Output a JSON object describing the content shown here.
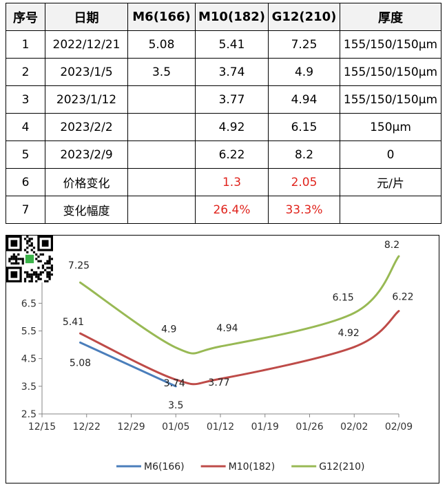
{
  "table": {
    "headers": [
      "序号",
      "日期",
      "M6(166)",
      "M10(182)",
      "G12(210)",
      "厚度"
    ],
    "rows": [
      {
        "no": "1",
        "date": "2022/12/21",
        "m6": "5.08",
        "m10": "5.41",
        "g12": "7.25",
        "thickness": "155/150/150μm"
      },
      {
        "no": "2",
        "date": "2023/1/5",
        "m6": "3.5",
        "m10": "3.74",
        "g12": "4.9",
        "thickness": "155/150/150μm"
      },
      {
        "no": "3",
        "date": "2023/1/12",
        "m6": "",
        "m10": "3.77",
        "g12": "4.94",
        "thickness": "155/150/150μm"
      },
      {
        "no": "4",
        "date": "2023/2/2",
        "m6": "",
        "m10": "4.92",
        "g12": "6.15",
        "thickness": "150μm"
      },
      {
        "no": "5",
        "date": "2023/2/9",
        "m6": "",
        "m10": "6.22",
        "g12": "8.2",
        "thickness": "0"
      },
      {
        "no": "6",
        "date": "价格变化",
        "m6": "",
        "m10": "1.3",
        "g12": "2.05",
        "thickness": "元/片"
      },
      {
        "no": "7",
        "date": "变化幅度",
        "m6": "",
        "m10": "26.4%",
        "g12": "33.3%",
        "thickness": ""
      }
    ],
    "highlight_color": "#e0231c"
  },
  "chart_data": {
    "type": "line",
    "x_axis": {
      "type": "date",
      "ticks": [
        "12/15",
        "12/22",
        "12/29",
        "01/05",
        "01/12",
        "01/19",
        "01/26",
        "02/02",
        "02/09"
      ],
      "tick_dates": [
        "2022-12-15",
        "2022-12-22",
        "2022-12-29",
        "2023-01-05",
        "2023-01-12",
        "2023-01-19",
        "2023-01-26",
        "2023-02-02",
        "2023-02-09"
      ]
    },
    "y_axis": {
      "ylim": [
        2.5,
        8.5
      ],
      "ticks": [
        "2.5",
        "3.5",
        "4.5",
        "5.5",
        "6.5",
        "7.5",
        "8.5"
      ]
    },
    "grid": false,
    "smooth": true,
    "legend_position": "bottom",
    "series": [
      {
        "name": "M6(166)",
        "color": "#4a7ebb",
        "points": [
          {
            "x": "2022-12-21",
            "y": 5.08,
            "label": "5.08"
          },
          {
            "x": "2023-01-05",
            "y": 3.5,
            "label": "3.5"
          }
        ]
      },
      {
        "name": "M10(182)",
        "color": "#be4b48",
        "points": [
          {
            "x": "2022-12-21",
            "y": 5.41,
            "label": "5.41"
          },
          {
            "x": "2023-01-05",
            "y": 3.74,
            "label": "3.74"
          },
          {
            "x": "2023-01-12",
            "y": 3.77,
            "label": "3.77"
          },
          {
            "x": "2023-02-02",
            "y": 4.92,
            "label": "4.92"
          },
          {
            "x": "2023-02-09",
            "y": 6.22,
            "label": "6.22"
          }
        ]
      },
      {
        "name": "G12(210)",
        "color": "#98b954",
        "points": [
          {
            "x": "2022-12-21",
            "y": 7.25,
            "label": "7.25"
          },
          {
            "x": "2023-01-05",
            "y": 4.9,
            "label": "4.9"
          },
          {
            "x": "2023-01-12",
            "y": 4.94,
            "label": "4.94"
          },
          {
            "x": "2023-02-02",
            "y": 6.15,
            "label": "6.15"
          },
          {
            "x": "2023-02-09",
            "y": 8.2,
            "label": "8.2"
          }
        ]
      }
    ]
  },
  "qr_code": {
    "icon": "qr-code-icon"
  }
}
